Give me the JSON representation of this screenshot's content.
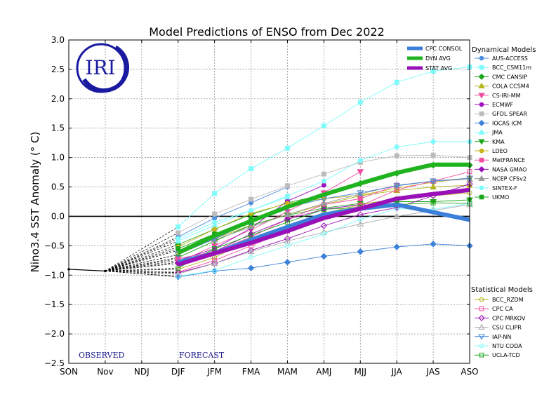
{
  "chart_data": {
    "type": "line",
    "title": "Model Predictions of ENSO from Dec 2022",
    "ylabel": "Nino3.4 SST Anomaly (° C)",
    "xlabel": "",
    "x": [
      "SON",
      "Nov",
      "NDJ",
      "DJF",
      "JFM",
      "FMA",
      "MAM",
      "AMJ",
      "MJJ",
      "JJA",
      "JAS",
      "ASO"
    ],
    "ylim": [
      -2.5,
      3.0
    ],
    "yticks": [
      3.0,
      2.5,
      2.0,
      1.5,
      1.0,
      0.5,
      0.0,
      -0.5,
      -1.0,
      -1.5,
      -2.0,
      -2.5
    ],
    "grid": true,
    "observed_label": "OBSERVED",
    "forecast_label": "FORECAST",
    "logo_text": "IRI",
    "observed": {
      "x": [
        "SON",
        "Nov"
      ],
      "values": [
        -0.9,
        -0.93
      ],
      "color": "#000000"
    },
    "consensus_series": [
      {
        "name": "CPC CONSOL",
        "color": "#3b7fd9",
        "values": [
          -0.78,
          -0.63,
          -0.4,
          -0.18,
          0.03,
          0.13,
          0.2,
          0.07,
          -0.06
        ]
      },
      {
        "name": "DYN AVG",
        "color": "#1fb31f",
        "values": [
          -0.62,
          -0.33,
          -0.08,
          0.16,
          0.37,
          0.56,
          0.74,
          0.88,
          0.88
        ]
      },
      {
        "name": "STAT AVG",
        "color": "#9a10b8",
        "values": [
          -0.82,
          -0.63,
          -0.45,
          -0.25,
          -0.03,
          0.13,
          0.3,
          0.38,
          0.45
        ]
      }
    ],
    "dynamical_title": "Dynamical Models",
    "dynamical_models": [
      {
        "name": "AUS-ACCESS",
        "color": "#4d8fe0",
        "marker": "circle",
        "filled": true,
        "values": [
          -0.35,
          -0.03,
          0.23,
          0.5,
          null,
          null,
          null,
          null,
          null
        ]
      },
      {
        "name": "BCC_CSM11m",
        "color": "#7ffbfb",
        "marker": "square",
        "filled": true,
        "values": [
          -0.18,
          0.39,
          0.81,
          1.16,
          1.54,
          1.94,
          2.28,
          2.47,
          2.54
        ]
      },
      {
        "name": "CMC CANSIP",
        "color": "#1aa51a",
        "marker": "diamond",
        "filled": true,
        "values": [
          -0.48,
          -0.22,
          0.03,
          0.23,
          0.37,
          0.56,
          0.73,
          0.87,
          0.87
        ]
      },
      {
        "name": "COLA CCSM4",
        "color": "#b3b31a",
        "marker": "triangle",
        "filled": true,
        "values": [
          -0.65,
          -0.38,
          -0.15,
          0.03,
          0.2,
          0.35,
          0.44,
          0.5,
          0.53
        ]
      },
      {
        "name": "CS-IRI-MM",
        "color": "#f04ca0",
        "marker": "triangledown",
        "filled": true,
        "values": [
          -0.78,
          -0.5,
          -0.23,
          0.08,
          0.4,
          0.76,
          null,
          null,
          null
        ]
      },
      {
        "name": "ECMWF",
        "color": "#a011c0",
        "marker": "circle",
        "filled": true,
        "values": [
          -0.75,
          -0.55,
          -0.2,
          0.26,
          0.53,
          null,
          null,
          null,
          null
        ]
      },
      {
        "name": "GFDL SPEAR",
        "color": "#bbbbbb",
        "marker": "square",
        "filled": true,
        "values": [
          -0.28,
          0.04,
          0.29,
          0.52,
          0.72,
          0.92,
          1.03,
          1.04,
          1.0
        ]
      },
      {
        "name": "IOCAS ICM",
        "color": "#3d80d8",
        "marker": "diamond",
        "filled": true,
        "values": [
          -1.03,
          -0.93,
          -0.88,
          -0.78,
          -0.68,
          -0.6,
          -0.52,
          -0.47,
          -0.5
        ]
      },
      {
        "name": "JMA",
        "color": "#7ffbfb",
        "marker": "triangle",
        "filled": true,
        "values": [
          -0.42,
          -0.15,
          0.1,
          0.33,
          null,
          null,
          null,
          null,
          null
        ]
      },
      {
        "name": "KMA",
        "color": "#1aa51a",
        "marker": "triangledown",
        "filled": true,
        "values": [
          -0.7,
          -0.42,
          -0.15,
          0.02,
          0.14,
          0.22,
          0.25,
          0.25,
          0.28
        ]
      },
      {
        "name": "LDEO",
        "color": "#c8b41a",
        "marker": "circle",
        "filled": true,
        "values": [
          -0.52,
          -0.22,
          0.05,
          0.22,
          0.3,
          0.36,
          0.48,
          0.58,
          0.65
        ]
      },
      {
        "name": "MetFRANCE",
        "color": "#f04ca0",
        "marker": "square",
        "filled": true,
        "values": [
          -0.72,
          -0.6,
          -0.35,
          -0.05,
          0.2,
          0.3,
          0.53,
          null,
          null
        ]
      },
      {
        "name": "NASA GMAO",
        "color": "#9a10b8",
        "marker": "diamond",
        "filled": true,
        "values": [
          -0.8,
          -0.6,
          -0.3,
          -0.05,
          0.12,
          0.2,
          0.17,
          null,
          null
        ]
      },
      {
        "name": "NCEP CFSv2",
        "color": "#999999",
        "marker": "triangle",
        "filled": true,
        "values": [
          -0.58,
          -0.4,
          -0.18,
          0.03,
          0.22,
          0.38,
          0.53,
          0.6,
          0.63
        ]
      },
      {
        "name": "SINTEX-F",
        "color": "#7ffbfb",
        "marker": "circle",
        "filled": true,
        "values": [
          -0.38,
          -0.1,
          0.1,
          0.35,
          0.6,
          0.95,
          1.18,
          1.27,
          1.27
        ]
      },
      {
        "name": "UKMO",
        "color": "#1aa51a",
        "marker": "square",
        "filled": true,
        "values": [
          -0.55,
          -0.3,
          -0.05,
          null,
          null,
          null,
          null,
          null,
          null
        ]
      }
    ],
    "statistical_title": "Statistical Models",
    "statistical_models": [
      {
        "name": "BCC_RZDM",
        "color": "#b3b31a",
        "marker": "circle",
        "filled": false,
        "values": [
          -0.9,
          -0.7,
          -0.4,
          -0.2,
          0.05,
          0.2,
          0.3,
          0.35,
          0.4
        ]
      },
      {
        "name": "CPC CA",
        "color": "#f04ca0",
        "marker": "square",
        "filled": false,
        "values": [
          -0.95,
          -0.75,
          -0.5,
          -0.25,
          0.0,
          0.18,
          0.45,
          0.6,
          0.76
        ]
      },
      {
        "name": "CPC MRKOV",
        "color": "#9a10b8",
        "marker": "diamond",
        "filled": false,
        "values": [
          -0.96,
          -0.8,
          -0.58,
          -0.38,
          -0.16,
          0.03,
          0.15,
          0.35,
          0.55
        ]
      },
      {
        "name": "CSU CLIPR",
        "color": "#aaaaaa",
        "marker": "triangle",
        "filled": false,
        "values": [
          -0.98,
          -0.8,
          -0.6,
          -0.42,
          -0.27,
          -0.13,
          0.0,
          0.1,
          0.2
        ]
      },
      {
        "name": "IAP-NN",
        "color": "#3d80d8",
        "marker": "triangledown",
        "filled": false,
        "values": [
          -0.65,
          -0.38,
          -0.1,
          0.15,
          0.3,
          0.4,
          0.52,
          0.6,
          0.65
        ]
      },
      {
        "name": "NTU CODA",
        "color": "#7ffbfb",
        "marker": "circle",
        "filled": false,
        "values": [
          -1.02,
          -0.92,
          -0.7,
          -0.5,
          -0.3,
          -0.05,
          0.13,
          0.12,
          0.22
        ]
      },
      {
        "name": "UCLA-TCD",
        "color": "#1aa51a",
        "marker": "square",
        "filled": false,
        "values": [
          -0.88,
          -0.55,
          -0.32,
          -0.1,
          0.12,
          0.15,
          0.2,
          0.23,
          0.22
        ]
      }
    ]
  }
}
